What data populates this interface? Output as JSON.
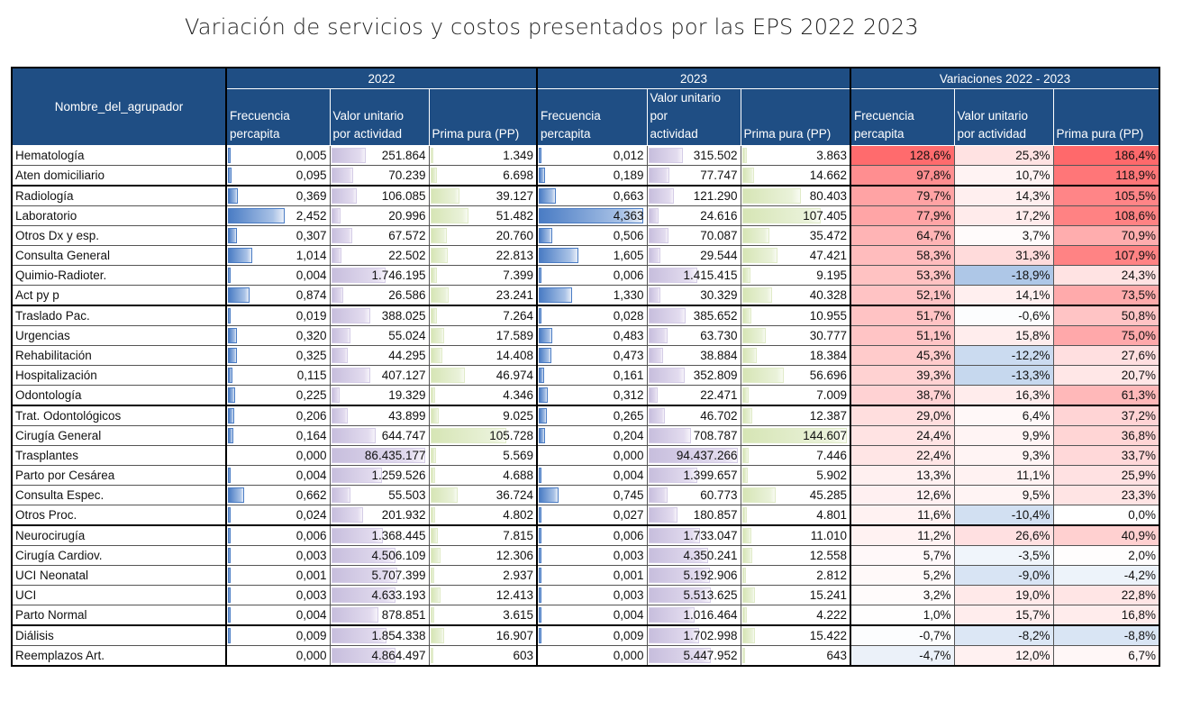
{
  "title": "Variación de servicios y costos presentados por las EPS 2022 2023",
  "chart_data": {
    "type": "table",
    "title": "Variación de servicios y costos presentados por las EPS 2022 2023",
    "row_header": "Nombre_del_agrupador",
    "groups": [
      "2022",
      "2023",
      "Variaciones 2022 - 2023"
    ],
    "columns": [
      {
        "group": "2022",
        "l1": "Frecuencia",
        "l2": "percapita",
        "key": "f22"
      },
      {
        "group": "2022",
        "l1": "Valor unitario",
        "l2": "por actividad",
        "key": "v22"
      },
      {
        "group": "2022",
        "l1": "",
        "l2": "Prima pura (PP)",
        "key": "p22"
      },
      {
        "group": "2023",
        "l1": "Frecuencia",
        "l2": "percapita",
        "key": "f23"
      },
      {
        "group": "2023",
        "l1": "Valor unitario por",
        "l2": "actividad",
        "key": "v23"
      },
      {
        "group": "2023",
        "l1": "",
        "l2": "Prima pura (PP)",
        "key": "p23"
      },
      {
        "group": "Variaciones 2022 - 2023",
        "l1": "Frecuencia",
        "l2": "percapita",
        "key": "vf"
      },
      {
        "group": "Variaciones 2022 - 2023",
        "l1": "Valor unitario",
        "l2": "por actividad",
        "key": "vv"
      },
      {
        "group": "Variaciones 2022 - 2023",
        "l1": "",
        "l2": "Prima pura (PP)",
        "key": "vp"
      }
    ],
    "rows": [
      {
        "name": "Hematología",
        "f22": "0,005",
        "v22": "251.864",
        "p22": "1.349",
        "f23": "0,012",
        "v23": "315.502",
        "p23": "3.863",
        "vf": "128,6%",
        "vv": "25,3%",
        "vp": "186,4%"
      },
      {
        "name": "Aten domiciliario",
        "f22": "0,095",
        "v22": "70.239",
        "p22": "6.698",
        "f23": "0,189",
        "v23": "77.747",
        "p23": "14.662",
        "vf": "97,8%",
        "vv": "10,7%",
        "vp": "118,9%"
      },
      {
        "name": "Radiología",
        "f22": "0,369",
        "v22": "106.085",
        "p22": "39.127",
        "f23": "0,663",
        "v23": "121.290",
        "p23": "80.403",
        "vf": "79,7%",
        "vv": "14,3%",
        "vp": "105,5%"
      },
      {
        "name": "Laboratorio",
        "f22": "2,452",
        "v22": "20.996",
        "p22": "51.482",
        "f23": "4,363",
        "v23": "24.616",
        "p23": "107.405",
        "vf": "77,9%",
        "vv": "17,2%",
        "vp": "108,6%"
      },
      {
        "name": "Otros Dx y esp.",
        "f22": "0,307",
        "v22": "67.572",
        "p22": "20.760",
        "f23": "0,506",
        "v23": "70.087",
        "p23": "35.472",
        "vf": "64,7%",
        "vv": "3,7%",
        "vp": "70,9%"
      },
      {
        "name": "Consulta General",
        "f22": "1,014",
        "v22": "22.502",
        "p22": "22.813",
        "f23": "1,605",
        "v23": "29.544",
        "p23": "47.421",
        "vf": "58,3%",
        "vv": "31,3%",
        "vp": "107,9%"
      },
      {
        "name": "Quimio-Radioter.",
        "f22": "0,004",
        "v22": "1.746.195",
        "p22": "7.399",
        "f23": "0,006",
        "v23": "1.415.415",
        "p23": "9.195",
        "vf": "53,3%",
        "vv": "-18,9%",
        "vp": "24,3%"
      },
      {
        "name": "Act py p",
        "f22": "0,874",
        "v22": "26.586",
        "p22": "23.241",
        "f23": "1,330",
        "v23": "30.329",
        "p23": "40.328",
        "vf": "52,1%",
        "vv": "14,1%",
        "vp": "73,5%"
      },
      {
        "name": "Traslado Pac.",
        "f22": "0,019",
        "v22": "388.025",
        "p22": "7.264",
        "f23": "0,028",
        "v23": "385.652",
        "p23": "10.955",
        "vf": "51,7%",
        "vv": "-0,6%",
        "vp": "50,8%"
      },
      {
        "name": "Urgencias",
        "f22": "0,320",
        "v22": "55.024",
        "p22": "17.589",
        "f23": "0,483",
        "v23": "63.730",
        "p23": "30.777",
        "vf": "51,1%",
        "vv": "15,8%",
        "vp": "75,0%"
      },
      {
        "name": "Rehabilitación",
        "f22": "0,325",
        "v22": "44.295",
        "p22": "14.408",
        "f23": "0,473",
        "v23": "38.884",
        "p23": "18.384",
        "vf": "45,3%",
        "vv": "-12,2%",
        "vp": "27,6%"
      },
      {
        "name": "Hospitalización",
        "f22": "0,115",
        "v22": "407.127",
        "p22": "46.974",
        "f23": "0,161",
        "v23": "352.809",
        "p23": "56.696",
        "vf": "39,3%",
        "vv": "-13,3%",
        "vp": "20,7%"
      },
      {
        "name": "Odontología",
        "f22": "0,225",
        "v22": "19.329",
        "p22": "4.346",
        "f23": "0,312",
        "v23": "22.471",
        "p23": "7.009",
        "vf": "38,7%",
        "vv": "16,3%",
        "vp": "61,3%"
      },
      {
        "name": "Trat. Odontológicos",
        "f22": "0,206",
        "v22": "43.899",
        "p22": "9.025",
        "f23": "0,265",
        "v23": "46.702",
        "p23": "12.387",
        "vf": "29,0%",
        "vv": "6,4%",
        "vp": "37,2%"
      },
      {
        "name": "Cirugía General",
        "f22": "0,164",
        "v22": "644.747",
        "p22": "105.728",
        "f23": "0,204",
        "v23": "708.787",
        "p23": "144.607",
        "vf": "24,4%",
        "vv": "9,9%",
        "vp": "36,8%"
      },
      {
        "name": "Trasplantes",
        "f22": "0,000",
        "v22": "86.435.177",
        "p22": "5.569",
        "f23": "0,000",
        "v23": "94.437.266",
        "p23": "7.446",
        "vf": "22,4%",
        "vv": "9,3%",
        "vp": "33,7%"
      },
      {
        "name": "Parto por Cesárea",
        "f22": "0,004",
        "v22": "1.259.526",
        "p22": "4.688",
        "f23": "0,004",
        "v23": "1.399.657",
        "p23": "5.902",
        "vf": "13,3%",
        "vv": "11,1%",
        "vp": "25,9%"
      },
      {
        "name": "Consulta Espec.",
        "f22": "0,662",
        "v22": "55.503",
        "p22": "36.724",
        "f23": "0,745",
        "v23": "60.773",
        "p23": "45.285",
        "vf": "12,6%",
        "vv": "9,5%",
        "vp": "23,3%"
      },
      {
        "name": "Otros Proc.",
        "f22": "0,024",
        "v22": "201.932",
        "p22": "4.802",
        "f23": "0,027",
        "v23": "180.857",
        "p23": "4.801",
        "vf": "11,6%",
        "vv": "-10,4%",
        "vp": "0,0%"
      },
      {
        "name": "Neurocirugía",
        "f22": "0,006",
        "v22": "1.368.445",
        "p22": "7.815",
        "f23": "0,006",
        "v23": "1.733.047",
        "p23": "11.010",
        "vf": "11,2%",
        "vv": "26,6%",
        "vp": "40,9%"
      },
      {
        "name": "Cirugía Cardiov.",
        "f22": "0,003",
        "v22": "4.506.109",
        "p22": "12.306",
        "f23": "0,003",
        "v23": "4.350.241",
        "p23": "12.558",
        "vf": "5,7%",
        "vv": "-3,5%",
        "vp": "2,0%"
      },
      {
        "name": "UCI Neonatal",
        "f22": "0,001",
        "v22": "5.707.399",
        "p22": "2.937",
        "f23": "0,001",
        "v23": "5.192.906",
        "p23": "2.812",
        "vf": "5,2%",
        "vv": "-9,0%",
        "vp": "-4,2%"
      },
      {
        "name": "UCI",
        "f22": "0,003",
        "v22": "4.633.193",
        "p22": "12.413",
        "f23": "0,003",
        "v23": "5.513.625",
        "p23": "15.241",
        "vf": "3,2%",
        "vv": "19,0%",
        "vp": "22,8%"
      },
      {
        "name": "Parto Normal",
        "f22": "0,004",
        "v22": "878.851",
        "p22": "3.615",
        "f23": "0,004",
        "v23": "1.016.464",
        "p23": "4.222",
        "vf": "1,0%",
        "vv": "15,7%",
        "vp": "16,8%"
      },
      {
        "name": "Diálisis",
        "f22": "0,009",
        "v22": "1.854.338",
        "p22": "16.907",
        "f23": "0,009",
        "v23": "1.702.998",
        "p23": "15.422",
        "vf": "-0,7%",
        "vv": "-8,2%",
        "vp": "-8,8%"
      },
      {
        "name": "Reemplazos Art.",
        "f22": "0,000",
        "v22": "4.864.497",
        "p22": "603",
        "f23": "0,000",
        "v23": "5.447.952",
        "p23": "643",
        "vf": "-4,7%",
        "vv": "12,0%",
        "vp": "6,7%"
      }
    ],
    "thick_separator_before_rows": [
      "Radiología",
      "Traslado Pac.",
      "Trat. Odontológicos",
      "Neurocirugía",
      "Diálisis"
    ],
    "databar_colors": {
      "frecuencia": "#4a7cc4",
      "valor_unitario": "#c7bedd",
      "prima_pura": "#d6e5b5"
    },
    "heatmap_colors": {
      "positive": "#f8696b",
      "neutral": "#ffffff",
      "negative": "#a9c4e6"
    },
    "header_color": "#1f4e84"
  }
}
